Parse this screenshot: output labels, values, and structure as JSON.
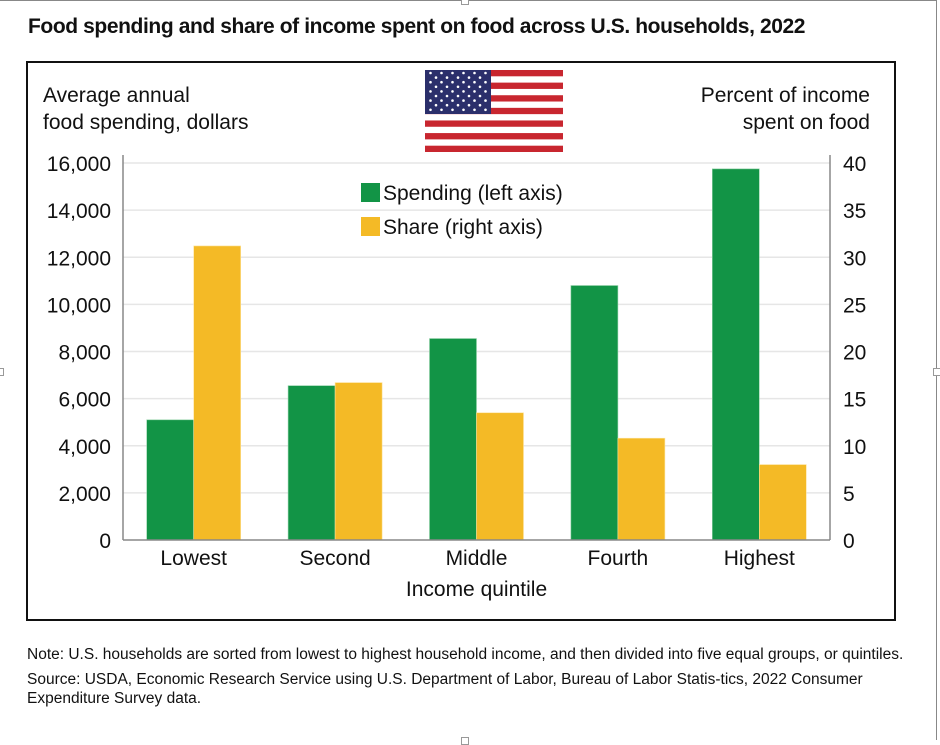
{
  "title": "Food spending and share of income spent on food across U.S. households, 2022",
  "flag_icon": "us-flag-icon",
  "colors": {
    "spending": "#129446",
    "share": "#F4BA26",
    "grid": "#e6e6e6",
    "axis": "#888888"
  },
  "chart_data": {
    "type": "bar",
    "title": "Food spending and share of income spent on food across U.S. households, 2022",
    "xlabel": "Income quintile",
    "ylabel_left": [
      "Average annual",
      "food spending, dollars"
    ],
    "ylabel_right": [
      "Percent of income",
      "spent on food"
    ],
    "categories": [
      "Lowest",
      "Second",
      "Middle",
      "Fourth",
      "Highest"
    ],
    "series": [
      {
        "name": "Spending (left axis)",
        "axis": "left",
        "values": [
          5100,
          6550,
          8550,
          10800,
          15750
        ]
      },
      {
        "name": "Share (right axis)",
        "axis": "right",
        "values": [
          31.2,
          16.7,
          13.5,
          10.8,
          8.0
        ]
      }
    ],
    "ylim_left": [
      0,
      16000
    ],
    "yticks_left": [
      0,
      2000,
      4000,
      6000,
      8000,
      10000,
      12000,
      14000,
      16000
    ],
    "ytick_labels_left": [
      "0",
      "2,000",
      "4,000",
      "6,000",
      "8,000",
      "10,000",
      "12,000",
      "14,000",
      "16,000"
    ],
    "ylim_right": [
      0,
      40
    ],
    "yticks_right": [
      0,
      5,
      10,
      15,
      20,
      25,
      30,
      35,
      40
    ],
    "ytick_labels_right": [
      "0",
      "5",
      "10",
      "15",
      "20",
      "25",
      "30",
      "35",
      "40"
    ],
    "grid": true,
    "legend_position": "top-center"
  },
  "notes": {
    "note": "Note: U.S. households are sorted from lowest to highest household income, and then divided into five equal groups, or quintiles.",
    "source": "Source: USDA, Economic Research Service using U.S. Department of Labor, Bureau of Labor Statis-tics, 2022 Consumer Expenditure Survey data."
  }
}
